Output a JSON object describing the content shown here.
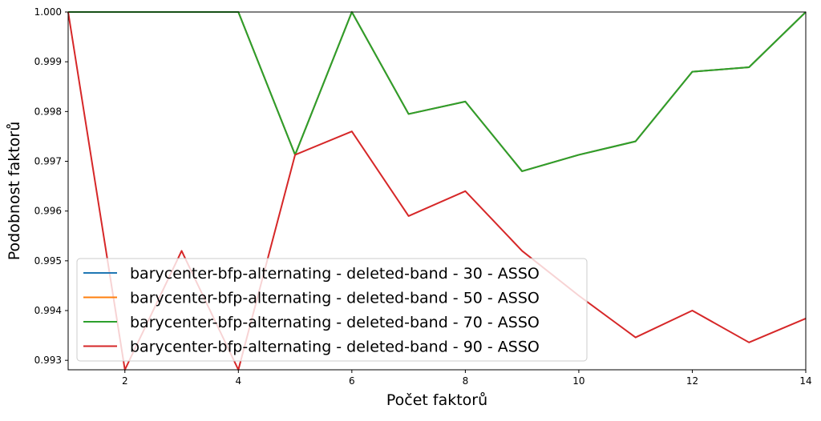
{
  "chart_data": {
    "type": "line",
    "title": "",
    "xlabel": "Počet faktorů",
    "ylabel": "Podobnost faktorů",
    "xlim": [
      1,
      14
    ],
    "ylim": [
      0.99281,
      1.0
    ],
    "xticks": [
      2,
      4,
      6,
      8,
      10,
      12,
      14
    ],
    "yticks": [
      0.993,
      0.994,
      0.995,
      0.996,
      0.997,
      0.998,
      0.999,
      1.0
    ],
    "ytick_labels": [
      "0.993",
      "0.994",
      "0.995",
      "0.996",
      "0.997",
      "0.998",
      "0.999",
      "1.000"
    ],
    "grid": false,
    "legend_position": "lower-left",
    "x": [
      1,
      2,
      3,
      4,
      5,
      6,
      7,
      8,
      9,
      10,
      11,
      12,
      13,
      14
    ],
    "series": [
      {
        "name": "barycenter-bfp-alternating - deleted-band - 30 - ASSO",
        "color": "#1f77b4",
        "values": [
          1.0,
          1.0,
          1.0,
          1.0,
          0.99713,
          1.0,
          0.99795,
          0.9982,
          0.9968,
          0.99713,
          0.9974,
          0.9988,
          0.99889,
          1.0
        ]
      },
      {
        "name": "barycenter-bfp-alternating - deleted-band - 50 - ASSO",
        "color": "#ff7f0e",
        "values": [
          1.0,
          1.0,
          1.0,
          1.0,
          0.99713,
          1.0,
          0.99795,
          0.9982,
          0.9968,
          0.99713,
          0.9974,
          0.9988,
          0.99889,
          1.0
        ]
      },
      {
        "name": "barycenter-bfp-alternating - deleted-band - 70 - ASSO",
        "color": "#2ca02c",
        "values": [
          1.0,
          1.0,
          1.0,
          1.0,
          0.99713,
          1.0,
          0.99795,
          0.9982,
          0.9968,
          0.99713,
          0.9974,
          0.9988,
          0.99889,
          1.0
        ]
      },
      {
        "name": "barycenter-bfp-alternating - deleted-band - 90 - ASSO",
        "color": "#d62728",
        "values": [
          1.0,
          0.99281,
          0.9952,
          0.99281,
          0.99713,
          0.9976,
          0.9959,
          0.9964,
          0.9952,
          0.9943,
          0.99346,
          0.994,
          0.99336,
          0.99384
        ]
      }
    ]
  }
}
